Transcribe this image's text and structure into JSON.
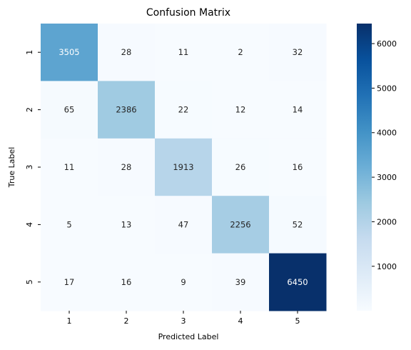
{
  "chart_data": {
    "type": "heatmap",
    "title": "Confusion Matrix",
    "xlabel": "Predicted Label",
    "ylabel": "True Label",
    "x_categories": [
      "1",
      "2",
      "3",
      "4",
      "5"
    ],
    "y_categories": [
      "1",
      "2",
      "3",
      "4",
      "5"
    ],
    "values": [
      [
        3505,
        28,
        11,
        2,
        32
      ],
      [
        65,
        2386,
        22,
        12,
        14
      ],
      [
        11,
        28,
        1913,
        26,
        16
      ],
      [
        5,
        13,
        47,
        2256,
        52
      ],
      [
        17,
        16,
        9,
        39,
        6450
      ]
    ],
    "colormap": "Blues",
    "colors": {
      "low": "#f7fbff",
      "high": "#08306b"
    },
    "colorbar": {
      "range": [
        2,
        6450
      ],
      "ticks": [
        1000,
        2000,
        3000,
        4000,
        5000,
        6000
      ],
      "tick_labels": [
        "1000",
        "2000",
        "3000",
        "4000",
        "5000",
        "6000"
      ]
    },
    "grid": false,
    "legend": "colorbar-right"
  }
}
